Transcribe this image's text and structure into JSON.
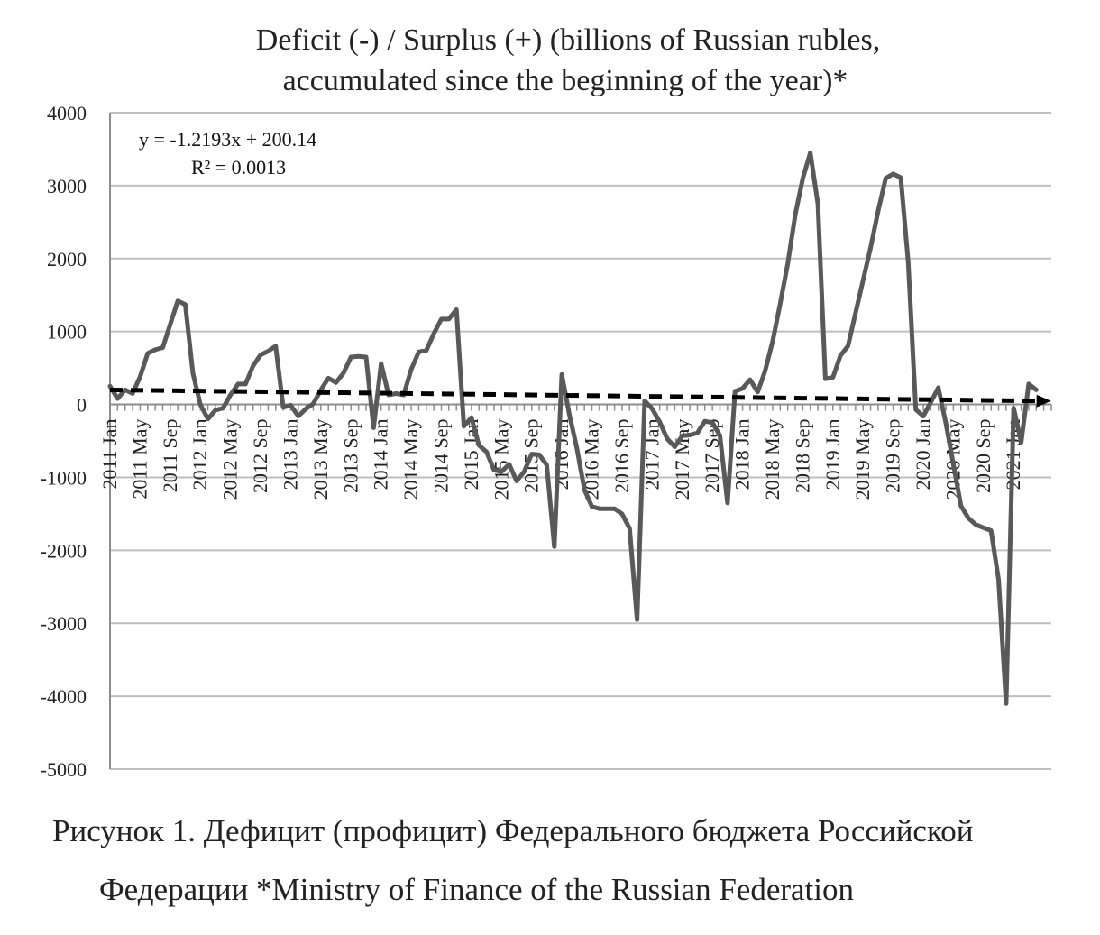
{
  "chart_data": {
    "type": "line",
    "title": [
      "Deficit (-) / Surplus (+) (billions of Russian rubles,",
      "accumulated since the beginning of the year)*"
    ],
    "ylim": [
      -5000,
      4000
    ],
    "yticks": [
      4000,
      3000,
      2000,
      1000,
      0,
      -1000,
      -2000,
      -3000,
      -4000,
      -5000
    ],
    "xlim": [
      0,
      125
    ],
    "xticks": [
      {
        "i": 0,
        "label": "2011 Jan"
      },
      {
        "i": 4,
        "label": "2011 May"
      },
      {
        "i": 8,
        "label": "2011 Sep"
      },
      {
        "i": 12,
        "label": "2012 Jan"
      },
      {
        "i": 16,
        "label": "2012 May"
      },
      {
        "i": 20,
        "label": "2012 Sep"
      },
      {
        "i": 24,
        "label": "2013 Jan"
      },
      {
        "i": 28,
        "label": "2013 May"
      },
      {
        "i": 32,
        "label": "2013 Sep"
      },
      {
        "i": 36,
        "label": "2014 Jan"
      },
      {
        "i": 40,
        "label": "2014 May"
      },
      {
        "i": 44,
        "label": "2014 Sep"
      },
      {
        "i": 48,
        "label": "2015 Jan"
      },
      {
        "i": 52,
        "label": "2015 May"
      },
      {
        "i": 56,
        "label": "2015 Sep"
      },
      {
        "i": 60,
        "label": "2016 Jan"
      },
      {
        "i": 64,
        "label": "2016 May"
      },
      {
        "i": 68,
        "label": "2016 Sep"
      },
      {
        "i": 72,
        "label": "2017 Jan"
      },
      {
        "i": 76,
        "label": "2017 May"
      },
      {
        "i": 80,
        "label": "2017 Sep"
      },
      {
        "i": 84,
        "label": "2018 Jan"
      },
      {
        "i": 88,
        "label": "2018 May"
      },
      {
        "i": 92,
        "label": "2018 Sep"
      },
      {
        "i": 96,
        "label": "2019 Jan"
      },
      {
        "i": 100,
        "label": "2019 May"
      },
      {
        "i": 104,
        "label": "2019 Sep"
      },
      {
        "i": 108,
        "label": "2020 Jan"
      },
      {
        "i": 112,
        "label": "2020 May"
      },
      {
        "i": 116,
        "label": "2020 Sep"
      },
      {
        "i": 120,
        "label": "2021 Jan"
      }
    ],
    "series": [
      {
        "name": "Deficit / Surplus",
        "values": [
          250,
          80,
          200,
          150,
          380,
          700,
          750,
          780,
          1100,
          1420,
          1370,
          430,
          0,
          -200,
          -80,
          -50,
          130,
          280,
          280,
          530,
          680,
          730,
          800,
          -40,
          -10,
          -160,
          -60,
          10,
          200,
          360,
          300,
          430,
          650,
          660,
          650,
          -320,
          560,
          130,
          150,
          130,
          480,
          720,
          740,
          970,
          1170,
          1170,
          1300,
          -300,
          -180,
          -560,
          -650,
          -900,
          -920,
          -820,
          -1050,
          -920,
          -680,
          -690,
          -830,
          -1950,
          410,
          -140,
          -600,
          -1170,
          -1400,
          -1430,
          -1430,
          -1430,
          -1500,
          -1700,
          -2950,
          50,
          -60,
          -240,
          -470,
          -580,
          -430,
          -420,
          -390,
          -230,
          -250,
          -430,
          -1350,
          180,
          220,
          340,
          170,
          460,
          870,
          1380,
          1930,
          2600,
          3100,
          3450,
          2750,
          350,
          370,
          670,
          800,
          1250,
          1700,
          2150,
          2650,
          3100,
          3160,
          3110,
          1950,
          -70,
          -160,
          30,
          230,
          -260,
          -820,
          -1390,
          -1560,
          -1650,
          -1690,
          -1730,
          -2400,
          -4100,
          -50,
          -520,
          280,
          200
        ]
      }
    ],
    "trendline": {
      "style": "dashed",
      "slope": -1.2193,
      "intercept": 200.14,
      "r2": 0.0013,
      "equation": "y = -1.2193x + 200.14",
      "r2_label": "R² = 0.0013"
    },
    "colors": {
      "line": "#595959",
      "trend": "#000000",
      "grid": "#bfbfbf",
      "axis": "#8c8c8c"
    }
  },
  "caption": {
    "line1": "Рисунок 1. Дефицит (профицит) Федерального бюджета Российской",
    "line2": "Федерации *Ministry of Finance of the Russian Federation"
  }
}
